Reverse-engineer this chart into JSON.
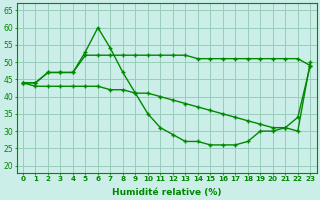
{
  "xlabel": "Humidité relative (%)",
  "bg_color": "#cceee8",
  "grid_color": "#99ccbb",
  "line_color": "#008800",
  "marker": "+",
  "xlim": [
    -0.5,
    23.5
  ],
  "ylim": [
    18,
    67
  ],
  "yticks": [
    20,
    25,
    30,
    35,
    40,
    45,
    50,
    55,
    60,
    65
  ],
  "xticks": [
    0,
    1,
    2,
    3,
    4,
    5,
    6,
    7,
    8,
    9,
    10,
    11,
    12,
    13,
    14,
    15,
    16,
    17,
    18,
    19,
    20,
    21,
    22,
    23
  ],
  "series1_x": [
    0,
    1,
    2,
    3,
    4,
    5,
    6,
    7,
    8,
    9,
    10,
    11,
    12,
    13,
    14,
    15,
    16,
    17,
    18,
    19,
    20,
    21,
    22,
    23
  ],
  "series1_y": [
    44,
    44,
    47,
    47,
    47,
    53,
    60,
    54,
    47,
    41,
    35,
    31,
    29,
    27,
    27,
    26,
    26,
    26,
    27,
    30,
    30,
    31,
    34,
    49
  ],
  "series2_x": [
    0,
    1,
    2,
    3,
    4,
    5,
    6,
    7,
    8,
    9,
    10,
    11,
    12,
    13,
    14,
    15,
    16,
    17,
    18,
    19,
    20,
    21,
    22,
    23
  ],
  "series2_y": [
    44,
    43,
    43,
    43,
    43,
    43,
    43,
    42,
    42,
    41,
    41,
    40,
    39,
    38,
    37,
    36,
    35,
    34,
    33,
    32,
    31,
    31,
    30,
    50
  ],
  "series3_x": [
    0,
    1,
    2,
    3,
    4,
    5,
    6,
    7,
    8,
    9,
    10,
    11,
    12,
    13,
    14,
    15,
    16,
    17,
    18,
    19,
    20,
    21,
    22,
    23
  ],
  "series3_y": [
    44,
    44,
    47,
    47,
    47,
    52,
    52,
    52,
    52,
    52,
    52,
    52,
    52,
    52,
    51,
    51,
    51,
    51,
    51,
    51,
    51,
    51,
    51,
    49
  ]
}
